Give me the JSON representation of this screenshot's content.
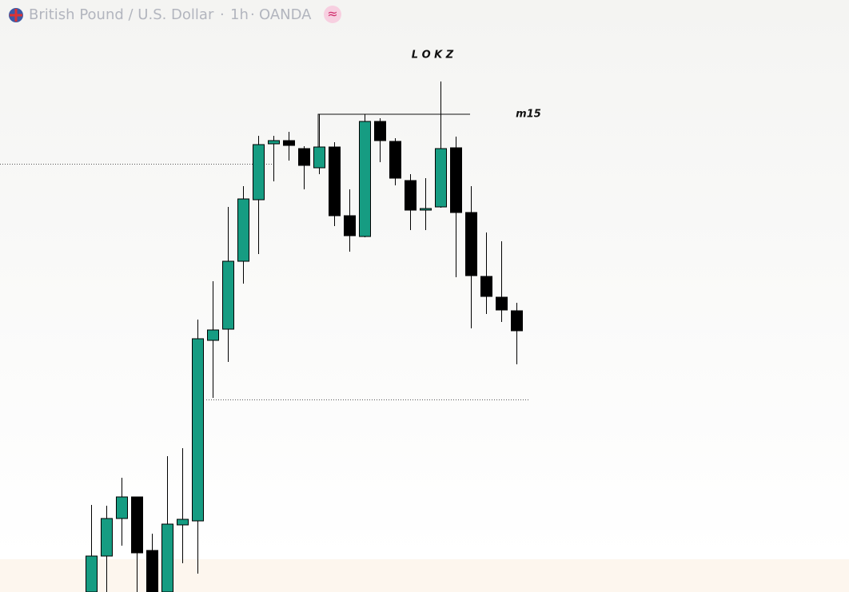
{
  "chart_data": {
    "type": "candlestick",
    "header": {
      "symbol": "British Pound / U.S. Dollar",
      "sep1": "·",
      "interval": "1h",
      "sep2": "·",
      "source": "OANDA",
      "badge": "≈"
    },
    "annotations": {
      "session": "L O K Z",
      "timeframe": "m15"
    },
    "ylim": [
      0,
      701
    ],
    "up_color": "#169c82",
    "down_color": "#000000",
    "levels": [
      536,
      241
    ],
    "open": [
      0,
      45,
      92,
      119,
      52,
      0,
      84,
      89,
      315,
      329,
      414,
      491,
      561,
      565,
      555,
      531,
      557,
      471,
      445,
      589,
      564,
      515,
      478,
      482,
      556,
      475,
      395,
      369,
      352
    ],
    "high": [
      109,
      108,
      143,
      119,
      73,
      170,
      180,
      341,
      389,
      482,
      508,
      571,
      571,
      576,
      558,
      598,
      563,
      504,
      598,
      593,
      568,
      523,
      518,
      639,
      570,
      508,
      450,
      439,
      362
    ],
    "low": [
      0,
      0,
      58,
      0,
      0,
      0,
      36,
      23,
      243,
      288,
      386,
      423,
      514,
      540,
      504,
      523,
      458,
      426,
      444,
      538,
      509,
      453,
      453,
      481,
      394,
      330,
      348,
      338,
      285
    ],
    "close": [
      45,
      92,
      119,
      49,
      0,
      85,
      91,
      317,
      328,
      414,
      492,
      560,
      565,
      559,
      534,
      557,
      471,
      446,
      589,
      565,
      518,
      478,
      480,
      555,
      475,
      396,
      370,
      353,
      327
    ]
  }
}
